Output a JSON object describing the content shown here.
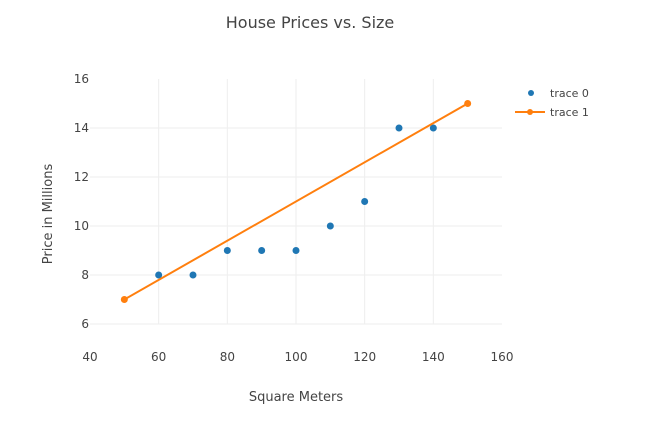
{
  "chart_data": {
    "type": "scatter",
    "title": "House Prices vs. Size",
    "xlabel": "Square Meters",
    "ylabel": "Price in Millions",
    "xlim": [
      40,
      160
    ],
    "ylim": [
      6,
      16
    ],
    "xticks": [
      40,
      60,
      80,
      100,
      120,
      140,
      160
    ],
    "yticks": [
      6,
      8,
      10,
      12,
      14,
      16
    ],
    "grid": true,
    "legend_position": "top-right",
    "series": [
      {
        "name": "trace 0",
        "mode": "markers",
        "color": "#1f77b4",
        "x": [
          60,
          70,
          80,
          90,
          100,
          110,
          120,
          130,
          140
        ],
        "y": [
          8,
          8,
          9,
          9,
          9,
          10,
          11,
          14,
          14
        ]
      },
      {
        "name": "trace 1",
        "mode": "lines+markers",
        "color": "#ff7f0e",
        "x": [
          50,
          150
        ],
        "y": [
          7,
          15
        ]
      }
    ]
  },
  "legend": {
    "items": [
      {
        "label": "trace 0"
      },
      {
        "label": "trace 1"
      }
    ]
  }
}
